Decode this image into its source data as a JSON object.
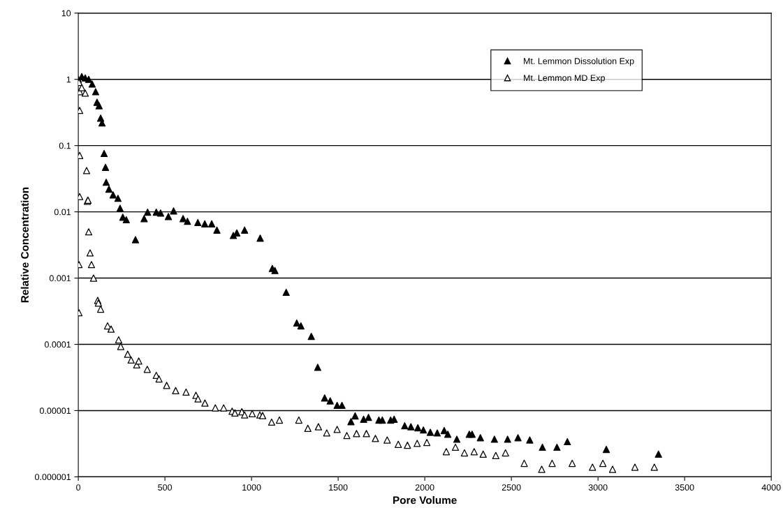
{
  "chart_data": {
    "type": "scatter",
    "xlabel": "Pore Volume",
    "ylabel": "Relative Concentration",
    "log": "y",
    "grid": "y",
    "legend": "top right",
    "marker": "triangle",
    "xlim": [
      0,
      4000
    ],
    "xticks": [
      0,
      500,
      1000,
      1500,
      2000,
      2500,
      3000,
      3500,
      4000
    ],
    "ylim": [
      1e-06,
      10
    ],
    "yticks": [
      {
        "value": 1e-06,
        "label": "0.000001"
      },
      {
        "value": 1e-05,
        "label": "0.00001"
      },
      {
        "value": 0.0001,
        "label": "0.0001"
      },
      {
        "value": 0.001,
        "label": "0.001"
      },
      {
        "value": 0.01,
        "label": "0.01"
      },
      {
        "value": 0.1,
        "label": "0.1"
      },
      {
        "value": 1,
        "label": "1"
      },
      {
        "value": 10,
        "label": "10"
      }
    ],
    "series": [
      {
        "name": "Mt. Lemmon Dissolution Exp",
        "color": "#000000",
        "x": [
          0,
          20,
          40,
          60,
          80,
          100,
          108,
          120,
          129,
          137,
          149,
          157,
          161,
          177,
          201,
          229,
          241,
          257,
          277,
          330,
          380,
          400,
          450,
          475,
          520,
          550,
          605,
          630,
          690,
          730,
          770,
          800,
          895,
          915,
          960,
          1050,
          1120,
          1135,
          1200,
          1261,
          1285,
          1345,
          1382,
          1422,
          1454,
          1494,
          1522,
          1574,
          1598,
          1647,
          1675,
          1735,
          1755,
          1803,
          1823,
          1884,
          1920,
          1960,
          1992,
          2032,
          2072,
          2112,
          2133,
          2185,
          2257,
          2273,
          2321,
          2402,
          2478,
          2538,
          2606,
          2679,
          2763,
          2823,
          3048,
          3349
        ],
        "values": [
          1.0,
          1.1,
          1.05,
          1.0,
          0.85,
          0.65,
          0.45,
          0.4,
          0.26,
          0.22,
          0.076,
          0.047,
          0.028,
          0.022,
          0.018,
          0.016,
          0.0113,
          0.0083,
          0.0076,
          0.0038,
          0.0079,
          0.0099,
          0.0099,
          0.0096,
          0.0085,
          0.0103,
          0.0079,
          0.0072,
          0.0069,
          0.0066,
          0.0066,
          0.0053,
          0.0044,
          0.0048,
          0.0053,
          0.004,
          0.0014,
          0.0013,
          0.00061,
          0.00021,
          0.00019,
          0.000132,
          4.5e-05,
          1.55e-05,
          1.4e-05,
          1.2e-05,
          1.2e-05,
          6.8e-06,
          8.3e-06,
          7.4e-06,
          7.9e-06,
          7.2e-06,
          7.2e-06,
          7.2e-06,
          7.4e-06,
          5.9e-06,
          5.7e-06,
          5.5e-06,
          5.1e-06,
          4.7e-06,
          4.6e-06,
          5e-06,
          4.4e-06,
          3.7e-06,
          4.4e-06,
          4.4e-06,
          3.9e-06,
          3.7e-06,
          3.7e-06,
          3.9e-06,
          3.6e-06,
          2.8e-06,
          2.8e-06,
          3.4e-06,
          2.6e-06,
          2.2e-06
        ]
      },
      {
        "name": "Mt. Lemmon MD Exp",
        "color": "#ffffff",
        "x": [
          4,
          8,
          20,
          40,
          8,
          8,
          48,
          8,
          52,
          56,
          60,
          68,
          4,
          76,
          88,
          4,
          112,
          116,
          129,
          169,
          189,
          233,
          245,
          285,
          305,
          337,
          349,
          398,
          450,
          466,
          510,
          562,
          622,
          679,
          691,
          731,
          791,
          839,
          888,
          904,
          944,
          960,
          1004,
          1048,
          1064,
          1116,
          1161,
          1273,
          1325,
          1386,
          1434,
          1494,
          1550,
          1606,
          1663,
          1715,
          1783,
          1847,
          1900,
          1956,
          2012,
          2124,
          2177,
          2229,
          2285,
          2337,
          2410,
          2466,
          2574,
          2675,
          2735,
          2851,
          2968,
          3028,
          3084,
          3213,
          3325
        ],
        "values": [
          0.9,
          0.65,
          0.75,
          0.62,
          0.34,
          0.071,
          0.042,
          0.017,
          0.0145,
          0.015,
          0.005,
          0.0024,
          0.0016,
          0.0016,
          0.001,
          0.0003,
          0.00046,
          0.00042,
          0.00034,
          0.00019,
          0.00017,
          0.000117,
          9.3e-05,
          7.1e-05,
          5.8e-05,
          4.9e-05,
          5.6e-05,
          4.2e-05,
          3.4e-05,
          3e-05,
          2.4e-05,
          2e-05,
          1.9e-05,
          1.7e-05,
          1.5e-05,
          1.3e-05,
          1.1e-05,
          1.1e-05,
          9.8e-06,
          9.2e-06,
          9.6e-06,
          8.6e-06,
          9e-06,
          8.6e-06,
          8.4e-06,
          6.7e-06,
          7.2e-06,
          7.2e-06,
          5.4e-06,
          5.7e-06,
          4.6e-06,
          5.2e-06,
          4.2e-06,
          4.5e-06,
          4.5e-06,
          3.8e-06,
          3.6e-06,
          3.1e-06,
          3e-06,
          3.2e-06,
          3.3e-06,
          2.4e-06,
          2.8e-06,
          2.3e-06,
          2.4e-06,
          2.2e-06,
          2.1e-06,
          2.3e-06,
          1.6e-06,
          1.3e-06,
          1.6e-06,
          1.6e-06,
          1.4e-06,
          1.6e-06,
          1.3e-06,
          1.4e-06,
          1.4e-06
        ]
      }
    ]
  }
}
